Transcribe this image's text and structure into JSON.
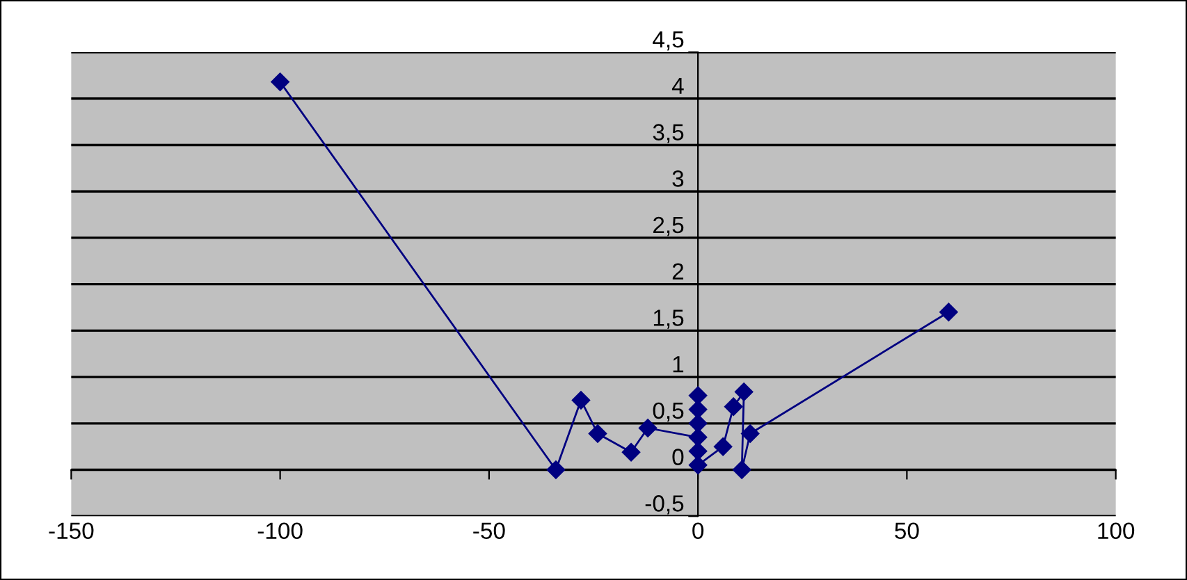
{
  "chart_data": {
    "type": "line",
    "x": [
      -100,
      -34,
      -28,
      -24,
      -16,
      -12,
      0,
      0,
      0,
      0,
      0,
      0,
      6,
      8.5,
      11,
      10.5,
      12.5,
      60
    ],
    "series": [
      {
        "color": "#000080",
        "values": [
          4.18,
          0,
          0.75,
          0.39,
          0.19,
          0.45,
          0.35,
          0.8,
          0.65,
          0.5,
          0.2,
          0.05,
          0.25,
          0.68,
          0.84,
          0,
          0.39,
          1.7
        ]
      }
    ],
    "xlim": [
      -150,
      100
    ],
    "xticks": [
      -150,
      -100,
      -50,
      0,
      50,
      100
    ],
    "ylim": [
      -0.5,
      4.5
    ],
    "yticks": [
      {
        "value": -0.5,
        "label": "-0,5"
      },
      {
        "value": 0,
        "label": "0"
      },
      {
        "value": 0.5,
        "label": "0,5"
      },
      {
        "value": 1,
        "label": "1"
      },
      {
        "value": 1.5,
        "label": "1,5"
      },
      {
        "value": 2,
        "label": "2"
      },
      {
        "value": 2.5,
        "label": "2,5"
      },
      {
        "value": 3,
        "label": "3"
      },
      {
        "value": 3.5,
        "label": "3,5"
      },
      {
        "value": 4,
        "label": "4"
      },
      {
        "value": 4.5,
        "label": "4,5"
      }
    ],
    "grid": "y",
    "marker": "diamond",
    "line_style": "solid",
    "legend": false
  }
}
